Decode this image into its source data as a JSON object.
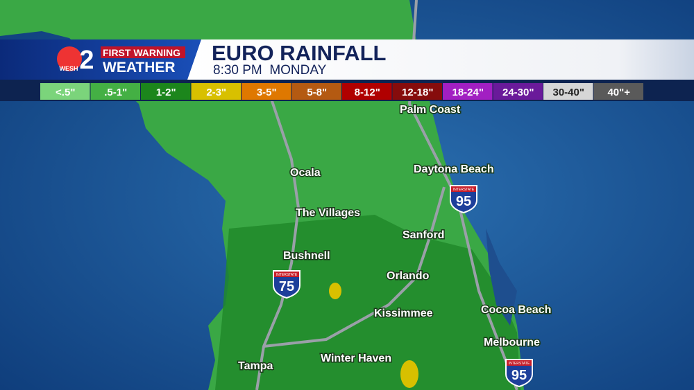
{
  "logo": {
    "station": "WESH",
    "number": "2",
    "tagline": "FIRST WARNING",
    "brand": "WEATHER"
  },
  "header": {
    "title": "EURO RAINFALL",
    "subtitle": "8:30 PM  MONDAY"
  },
  "legend": [
    {
      "label": "<.5\"",
      "color": "#7bd47b"
    },
    {
      "label": ".5-1\"",
      "color": "#44b044"
    },
    {
      "label": "1-2\"",
      "color": "#1c861c"
    },
    {
      "label": "2-3\"",
      "color": "#d8c000"
    },
    {
      "label": "3-5\"",
      "color": "#df7800"
    },
    {
      "label": "5-8\"",
      "color": "#b45a12"
    },
    {
      "label": "8-12\"",
      "color": "#b00000"
    },
    {
      "label": "12-18\"",
      "color": "#860c0c"
    },
    {
      "label": "18-24\"",
      "color": "#a21fc2"
    },
    {
      "label": "24-30\"",
      "color": "#6a1a9a"
    },
    {
      "label": "30-40\"",
      "color": "#d6d6d6"
    },
    {
      "label": "40\"+",
      "color": "#5a5a5a"
    }
  ],
  "cities": [
    "Palm Coast",
    "Daytona Beach",
    "Ocala",
    "The Villages",
    "Sanford",
    "Bushnell",
    "Orlando",
    "Kissimmee",
    "Cocoa Beach",
    "Melbourne",
    "Tampa",
    "Winter Haven"
  ],
  "shields": [
    {
      "top": "INTERSTATE",
      "number": "95"
    },
    {
      "top": "INTERSTATE",
      "number": "75"
    },
    {
      "top": "INTERSTATE",
      "number": "95"
    }
  ]
}
